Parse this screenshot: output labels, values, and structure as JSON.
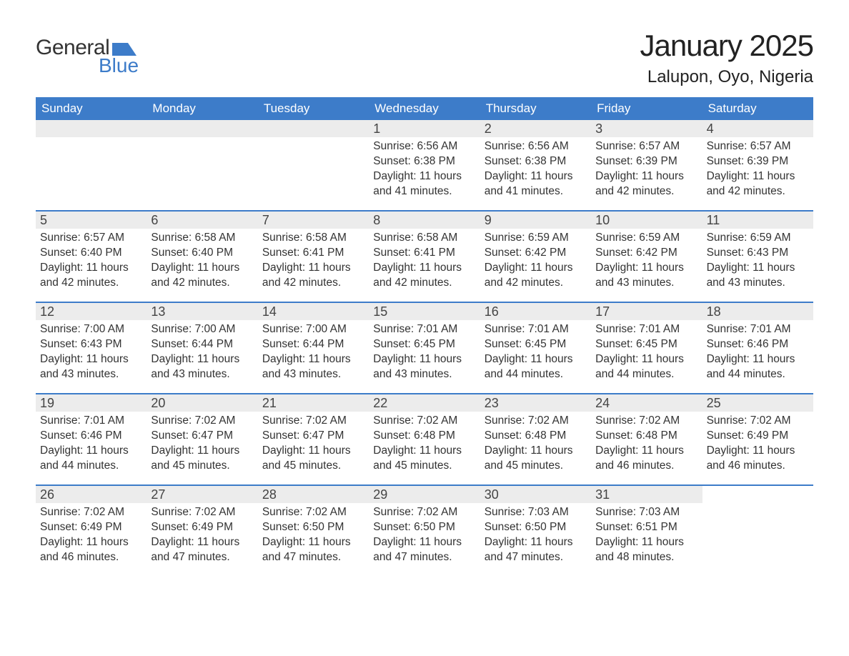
{
  "logo": {
    "text1": "General",
    "text2": "Blue",
    "flag_color": "#3d7cc9"
  },
  "header": {
    "title": "January 2025",
    "subtitle": "Lalupon, Oyo, Nigeria"
  },
  "styling": {
    "header_bg": "#3d7cc9",
    "header_text": "#ffffff",
    "daynum_bg": "#ececec",
    "week_border": "#3d7cc9",
    "body_text": "#333333",
    "title_fontsize": 42,
    "subtitle_fontsize": 24,
    "dayname_fontsize": 17,
    "body_fontsize": 15.5
  },
  "day_names": [
    "Sunday",
    "Monday",
    "Tuesday",
    "Wednesday",
    "Thursday",
    "Friday",
    "Saturday"
  ],
  "labels": {
    "sunrise": "Sunrise:",
    "sunset": "Sunset:",
    "daylight_prefix": "Daylight:",
    "daylight_suffix_hours": "hours",
    "daylight_and": "and",
    "daylight_suffix_min": "minutes."
  },
  "weeks": [
    [
      null,
      null,
      null,
      {
        "n": "1",
        "sunrise": "6:56 AM",
        "sunset": "6:38 PM",
        "dl_h": "11",
        "dl_m": "41"
      },
      {
        "n": "2",
        "sunrise": "6:56 AM",
        "sunset": "6:38 PM",
        "dl_h": "11",
        "dl_m": "41"
      },
      {
        "n": "3",
        "sunrise": "6:57 AM",
        "sunset": "6:39 PM",
        "dl_h": "11",
        "dl_m": "42"
      },
      {
        "n": "4",
        "sunrise": "6:57 AM",
        "sunset": "6:39 PM",
        "dl_h": "11",
        "dl_m": "42"
      }
    ],
    [
      {
        "n": "5",
        "sunrise": "6:57 AM",
        "sunset": "6:40 PM",
        "dl_h": "11",
        "dl_m": "42"
      },
      {
        "n": "6",
        "sunrise": "6:58 AM",
        "sunset": "6:40 PM",
        "dl_h": "11",
        "dl_m": "42"
      },
      {
        "n": "7",
        "sunrise": "6:58 AM",
        "sunset": "6:41 PM",
        "dl_h": "11",
        "dl_m": "42"
      },
      {
        "n": "8",
        "sunrise": "6:58 AM",
        "sunset": "6:41 PM",
        "dl_h": "11",
        "dl_m": "42"
      },
      {
        "n": "9",
        "sunrise": "6:59 AM",
        "sunset": "6:42 PM",
        "dl_h": "11",
        "dl_m": "42"
      },
      {
        "n": "10",
        "sunrise": "6:59 AM",
        "sunset": "6:42 PM",
        "dl_h": "11",
        "dl_m": "43"
      },
      {
        "n": "11",
        "sunrise": "6:59 AM",
        "sunset": "6:43 PM",
        "dl_h": "11",
        "dl_m": "43"
      }
    ],
    [
      {
        "n": "12",
        "sunrise": "7:00 AM",
        "sunset": "6:43 PM",
        "dl_h": "11",
        "dl_m": "43"
      },
      {
        "n": "13",
        "sunrise": "7:00 AM",
        "sunset": "6:44 PM",
        "dl_h": "11",
        "dl_m": "43"
      },
      {
        "n": "14",
        "sunrise": "7:00 AM",
        "sunset": "6:44 PM",
        "dl_h": "11",
        "dl_m": "43"
      },
      {
        "n": "15",
        "sunrise": "7:01 AM",
        "sunset": "6:45 PM",
        "dl_h": "11",
        "dl_m": "43"
      },
      {
        "n": "16",
        "sunrise": "7:01 AM",
        "sunset": "6:45 PM",
        "dl_h": "11",
        "dl_m": "44"
      },
      {
        "n": "17",
        "sunrise": "7:01 AM",
        "sunset": "6:45 PM",
        "dl_h": "11",
        "dl_m": "44"
      },
      {
        "n": "18",
        "sunrise": "7:01 AM",
        "sunset": "6:46 PM",
        "dl_h": "11",
        "dl_m": "44"
      }
    ],
    [
      {
        "n": "19",
        "sunrise": "7:01 AM",
        "sunset": "6:46 PM",
        "dl_h": "11",
        "dl_m": "44"
      },
      {
        "n": "20",
        "sunrise": "7:02 AM",
        "sunset": "6:47 PM",
        "dl_h": "11",
        "dl_m": "45"
      },
      {
        "n": "21",
        "sunrise": "7:02 AM",
        "sunset": "6:47 PM",
        "dl_h": "11",
        "dl_m": "45"
      },
      {
        "n": "22",
        "sunrise": "7:02 AM",
        "sunset": "6:48 PM",
        "dl_h": "11",
        "dl_m": "45"
      },
      {
        "n": "23",
        "sunrise": "7:02 AM",
        "sunset": "6:48 PM",
        "dl_h": "11",
        "dl_m": "45"
      },
      {
        "n": "24",
        "sunrise": "7:02 AM",
        "sunset": "6:48 PM",
        "dl_h": "11",
        "dl_m": "46"
      },
      {
        "n": "25",
        "sunrise": "7:02 AM",
        "sunset": "6:49 PM",
        "dl_h": "11",
        "dl_m": "46"
      }
    ],
    [
      {
        "n": "26",
        "sunrise": "7:02 AM",
        "sunset": "6:49 PM",
        "dl_h": "11",
        "dl_m": "46"
      },
      {
        "n": "27",
        "sunrise": "7:02 AM",
        "sunset": "6:49 PM",
        "dl_h": "11",
        "dl_m": "47"
      },
      {
        "n": "28",
        "sunrise": "7:02 AM",
        "sunset": "6:50 PM",
        "dl_h": "11",
        "dl_m": "47"
      },
      {
        "n": "29",
        "sunrise": "7:02 AM",
        "sunset": "6:50 PM",
        "dl_h": "11",
        "dl_m": "47"
      },
      {
        "n": "30",
        "sunrise": "7:03 AM",
        "sunset": "6:50 PM",
        "dl_h": "11",
        "dl_m": "47"
      },
      {
        "n": "31",
        "sunrise": "7:03 AM",
        "sunset": "6:51 PM",
        "dl_h": "11",
        "dl_m": "48"
      },
      null
    ]
  ]
}
